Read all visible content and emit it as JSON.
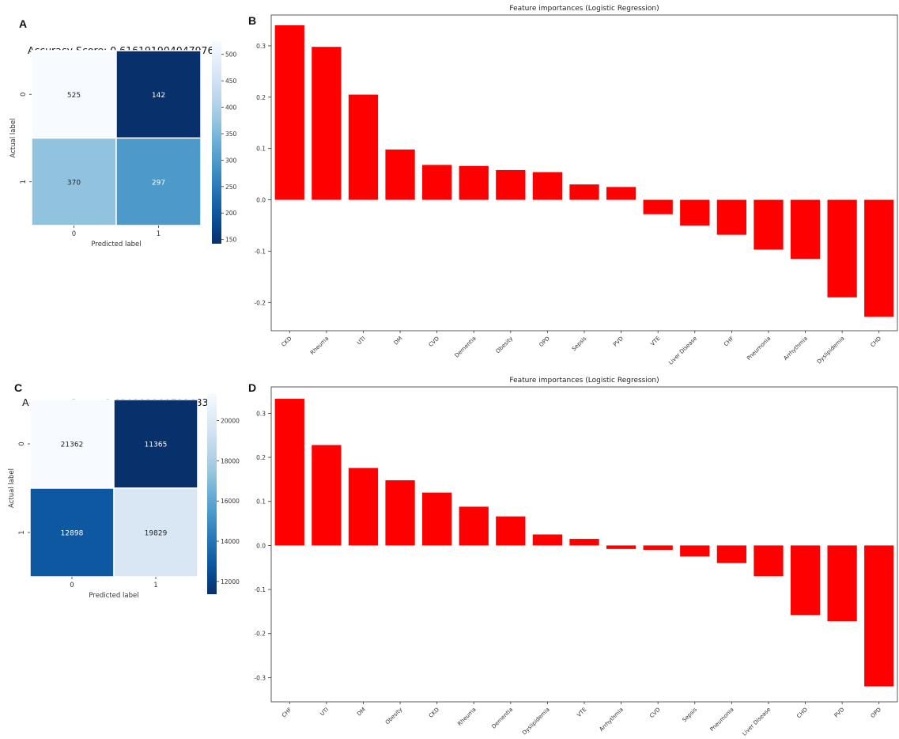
{
  "panels": [
    "A",
    "B",
    "C",
    "D"
  ],
  "colors": {
    "bar": "#ff0000",
    "cm_low": "#08306b",
    "cm_high": "#f7fbff"
  },
  "chart_data": [
    {
      "type": "heatmap",
      "title": "Accuracy Score: 0.616191904047976",
      "xlabel": "Predicted label",
      "ylabel": "Actual label",
      "x_ticks": [
        "0",
        "1"
      ],
      "y_ticks": [
        "0",
        "1"
      ],
      "values": [
        [
          525,
          142
        ],
        [
          370,
          297
        ]
      ],
      "colorbar": {
        "min": 142,
        "max": 525,
        "ticks": [
          "500",
          "450",
          "400",
          "350",
          "300",
          "250",
          "200",
          "150"
        ]
      }
    },
    {
      "type": "bar",
      "title": "Feature importances (Logistic Regression)",
      "categories": [
        "CKD",
        "Rheuma",
        "UTI",
        "DM",
        "CVD",
        "Dementia",
        "Obesity",
        "OPD",
        "Sepsis",
        "PVD",
        "VTE",
        "Liver Disease",
        "CHF",
        "Pneumonia",
        "Arrhythmia",
        "Dyslipidemia",
        "CHD"
      ],
      "values": [
        0.34,
        0.298,
        0.205,
        0.098,
        0.068,
        0.066,
        0.058,
        0.054,
        0.03,
        0.025,
        -0.028,
        -0.05,
        -0.068,
        -0.097,
        -0.115,
        -0.19,
        -0.228
      ],
      "ylim": [
        -0.255,
        0.36
      ],
      "yticks": [
        "0.3",
        "0.2",
        "0.1",
        "0.0",
        "-0.1",
        "-0.2"
      ]
    },
    {
      "type": "heatmap",
      "title": "Accuracy Score: 0.6293121887126837",
      "xlabel": "Predicted label",
      "ylabel": "Actual label",
      "x_ticks": [
        "0",
        "1"
      ],
      "y_ticks": [
        "0",
        "1"
      ],
      "values": [
        [
          21362,
          11365
        ],
        [
          12898,
          19829
        ]
      ],
      "colorbar": {
        "min": 11365,
        "max": 21362,
        "ticks": [
          "20000",
          "18000",
          "16000",
          "14000",
          "12000"
        ]
      }
    },
    {
      "type": "bar",
      "title": "Feature importances (Logistic Regression)",
      "categories": [
        "CHF",
        "UTI",
        "DM",
        "Obesity",
        "CKD",
        "Rheuma",
        "Dementia",
        "Dyslipidemia",
        "VTE",
        "Arrhythmia",
        "CVD",
        "Sepsis",
        "Pneumonia",
        "Liver Disease",
        "CHD",
        "PVD",
        "OPD"
      ],
      "values": [
        0.333,
        0.228,
        0.176,
        0.148,
        0.12,
        0.088,
        0.066,
        0.025,
        0.015,
        -0.008,
        -0.01,
        -0.025,
        -0.04,
        -0.07,
        -0.158,
        -0.172,
        -0.32
      ],
      "ylim": [
        -0.355,
        0.36
      ],
      "yticks": [
        "0.3",
        "0.2",
        "0.1",
        "0.0",
        "-0.1",
        "-0.2",
        "-0.3"
      ]
    }
  ]
}
